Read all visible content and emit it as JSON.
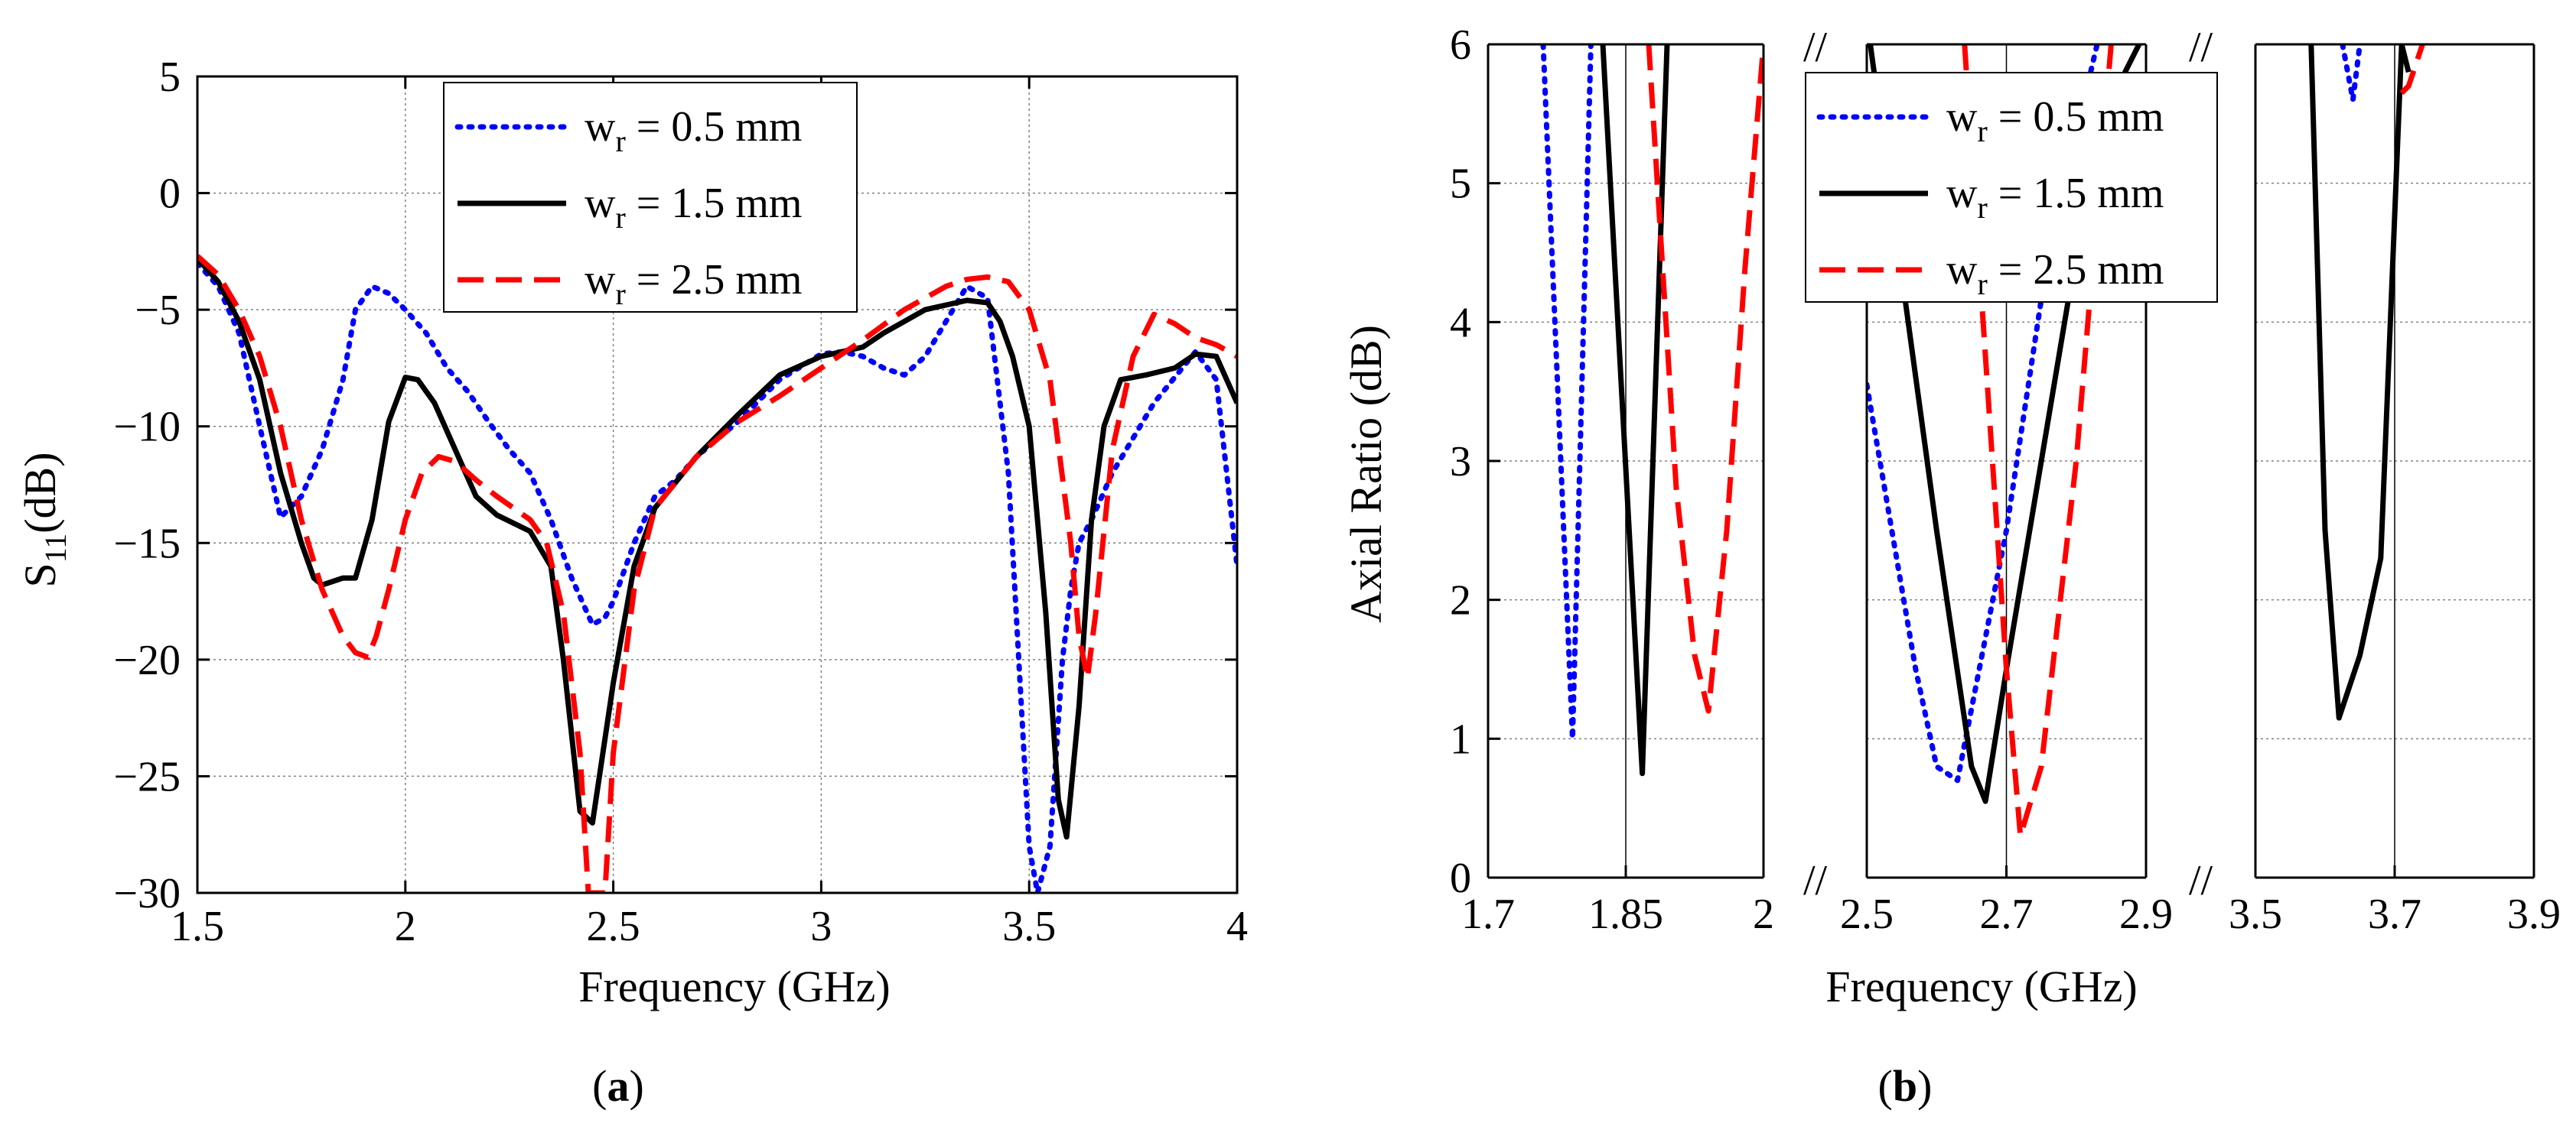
{
  "colors": {
    "wr_0_5": "#0000ff",
    "wr_1_5": "#000000",
    "wr_2_5": "#ff0000",
    "grid": "#808080",
    "axis": "#000000"
  },
  "chart_data": [
    {
      "id": "a",
      "type": "line",
      "panel_label_open": "(",
      "panel_label_letter": "a",
      "panel_label_close": ")",
      "xlabel": "Frequency (GHz)",
      "ylabel_main": "S",
      "ylabel_sub": "11",
      "ylabel_tail": "(dB)",
      "xlim": [
        1.5,
        4
      ],
      "ylim": [
        -30,
        5
      ],
      "xticks": [
        1.5,
        2,
        2.5,
        3,
        3.5,
        4
      ],
      "xtick_labels": [
        "1.5",
        "2",
        "2.5",
        "3",
        "3.5",
        "4"
      ],
      "yticks": [
        -30,
        -25,
        -20,
        -15,
        -10,
        -5,
        0,
        5
      ],
      "ytick_labels": [
        "−30",
        "−25",
        "−20",
        "−15",
        "−10",
        "−5",
        "0",
        "5"
      ],
      "grid": true,
      "legend_placement": "top-center",
      "series": [
        {
          "name_main": "w",
          "name_sub": "r",
          "name_tail": " = 0.5 mm",
          "style": "dotted",
          "x": [
            1.5,
            1.55,
            1.6,
            1.65,
            1.7,
            1.75,
            1.8,
            1.85,
            1.88,
            1.92,
            1.96,
            2.0,
            2.05,
            2.1,
            2.15,
            2.2,
            2.25,
            2.3,
            2.35,
            2.4,
            2.45,
            2.48,
            2.5,
            2.55,
            2.6,
            2.65,
            2.7,
            2.8,
            2.9,
            3.0,
            3.05,
            3.1,
            3.15,
            3.2,
            3.25,
            3.3,
            3.35,
            3.4,
            3.45,
            3.5,
            3.52,
            3.55,
            3.58,
            3.6,
            3.62,
            3.65,
            3.7,
            3.8,
            3.9,
            3.95,
            4.0
          ],
          "y": [
            -3,
            -4,
            -6,
            -10,
            -13.9,
            -13,
            -11,
            -8,
            -5,
            -4,
            -4.3,
            -5,
            -6,
            -7.5,
            -8.5,
            -9.8,
            -11,
            -12,
            -14,
            -16.5,
            -18.5,
            -18.2,
            -17.5,
            -15,
            -13,
            -12.3,
            -11.3,
            -9.8,
            -8,
            -6.9,
            -6.8,
            -7,
            -7.5,
            -7.8,
            -7,
            -5.5,
            -4,
            -4.5,
            -12,
            -28,
            -30,
            -28,
            -20,
            -17,
            -15,
            -14,
            -12,
            -9,
            -6.8,
            -8,
            -16
          ]
        },
        {
          "name_main": "w",
          "name_sub": "r",
          "name_tail": " = 1.5 mm",
          "style": "solid",
          "x": [
            1.5,
            1.55,
            1.6,
            1.65,
            1.7,
            1.75,
            1.78,
            1.8,
            1.85,
            1.88,
            1.92,
            1.96,
            2.0,
            2.03,
            2.07,
            2.12,
            2.17,
            2.22,
            2.3,
            2.35,
            2.38,
            2.42,
            2.45,
            2.5,
            2.55,
            2.6,
            2.7,
            2.8,
            2.9,
            3.0,
            3.05,
            3.1,
            3.15,
            3.2,
            3.25,
            3.3,
            3.35,
            3.4,
            3.43,
            3.46,
            3.5,
            3.54,
            3.57,
            3.59,
            3.62,
            3.65,
            3.68,
            3.72,
            3.78,
            3.85,
            3.9,
            3.95,
            4.0
          ],
          "y": [
            -2.8,
            -3.8,
            -5.5,
            -8,
            -12,
            -15,
            -16.5,
            -16.8,
            -16.5,
            -16.5,
            -14,
            -9.8,
            -7.9,
            -8,
            -9,
            -11,
            -13,
            -13.8,
            -14.5,
            -16,
            -20,
            -26.5,
            -27,
            -21,
            -16,
            -13.5,
            -11.3,
            -9.5,
            -7.8,
            -7,
            -6.8,
            -6.6,
            -6,
            -5.5,
            -5,
            -4.8,
            -4.6,
            -4.7,
            -5.5,
            -7,
            -10,
            -18,
            -26,
            -27.6,
            -22,
            -14,
            -10,
            -8,
            -7.8,
            -7.5,
            -6.9,
            -7,
            -9
          ]
        },
        {
          "name_main": "w",
          "name_sub": "r",
          "name_tail": " = 2.5 mm",
          "style": "dashed",
          "x": [
            1.5,
            1.55,
            1.6,
            1.65,
            1.7,
            1.75,
            1.8,
            1.85,
            1.88,
            1.91,
            1.93,
            1.96,
            2.0,
            2.04,
            2.08,
            2.12,
            2.17,
            2.22,
            2.3,
            2.34,
            2.38,
            2.42,
            2.44,
            2.46,
            2.48,
            2.5,
            2.55,
            2.6,
            2.7,
            2.8,
            2.9,
            3.0,
            3.1,
            3.2,
            3.3,
            3.35,
            3.4,
            3.45,
            3.5,
            3.55,
            3.6,
            3.62,
            3.64,
            3.66,
            3.7,
            3.75,
            3.8,
            3.85,
            3.9,
            3.95,
            4.0
          ],
          "y": [
            -2.7,
            -3.5,
            -5,
            -7,
            -10,
            -14,
            -17,
            -19,
            -19.7,
            -19.9,
            -19,
            -17,
            -14,
            -12,
            -11.3,
            -11.5,
            -12.3,
            -13,
            -14,
            -15,
            -18,
            -24,
            -30,
            -30,
            -30,
            -24,
            -17,
            -13.5,
            -11.3,
            -9.8,
            -8.7,
            -7.5,
            -6.3,
            -5,
            -4,
            -3.7,
            -3.6,
            -3.8,
            -5,
            -8,
            -15,
            -19,
            -20.8,
            -18,
            -11,
            -7,
            -5.2,
            -5.6,
            -6.2,
            -6.5,
            -7
          ]
        }
      ]
    },
    {
      "id": "b",
      "type": "line",
      "panel_label_open": "(",
      "panel_label_letter": "b",
      "panel_label_close": ")",
      "xlabel": "Frequency (GHz)",
      "ylabel": "Axial Ratio (dB)",
      "ylim": [
        0,
        6
      ],
      "yticks": [
        0,
        1,
        2,
        3,
        4,
        5,
        6
      ],
      "ytick_labels": [
        "0",
        "1",
        "2",
        "3",
        "4",
        "5",
        "6"
      ],
      "grid": true,
      "broken_x_axis": true,
      "axis_break_mark": "//",
      "legend_placement": "top-center",
      "segments": [
        {
          "xlim": [
            1.7,
            2.0
          ],
          "xticks": [
            1.7,
            1.85,
            2.0
          ],
          "xtick_labels": [
            "1.7",
            "1.85",
            "2"
          ]
        },
        {
          "xlim": [
            2.5,
            2.9
          ],
          "xticks": [
            2.5,
            2.7,
            2.9
          ],
          "xtick_labels": [
            "2.5",
            "2.7",
            "2.9"
          ]
        },
        {
          "xlim": [
            3.5,
            3.9
          ],
          "xticks": [
            3.5,
            3.7,
            3.9
          ],
          "xtick_labels": [
            "3.5",
            "3.7",
            "3.9"
          ]
        }
      ],
      "series": [
        {
          "name_main": "w",
          "name_sub": "r",
          "name_tail": " = 0.5 mm",
          "style": "dotted",
          "x": [
            1.76,
            1.792,
            1.812,
            [],
            2.5,
            2.57,
            2.6,
            2.63,
            2.7,
            2.76,
            2.83,
            [],
            3.625,
            3.64,
            3.65
          ],
          "y": [
            6,
            1.0,
            6,
            [],
            3.55,
            1.5,
            0.8,
            0.7,
            2.5,
            4.5,
            6,
            [],
            6,
            5.6,
            6
          ]
        },
        {
          "name_main": "w",
          "name_sub": "r",
          "name_tail": " = 1.5 mm",
          "style": "solid",
          "x": [
            1.825,
            1.868,
            1.895,
            [],
            2.505,
            2.6,
            2.65,
            2.67,
            2.7,
            2.8,
            2.87,
            2.89,
            [],
            3.58,
            3.6,
            3.62,
            3.65,
            3.68,
            3.71,
            3.72
          ],
          "y": [
            6,
            0.75,
            6,
            [],
            6,
            2.5,
            0.8,
            0.55,
            1.5,
            4.5,
            5.8,
            6,
            [],
            6,
            2.5,
            1.15,
            1.6,
            2.3,
            6,
            5.8
          ]
        },
        {
          "name_main": "w",
          "name_sub": "r",
          "name_tail": " = 2.5 mm",
          "style": "dashed",
          "x": [
            1.875,
            1.905,
            1.925,
            1.94,
            1.96,
            1.98,
            2.0,
            [],
            2.64,
            2.7,
            2.72,
            2.75,
            2.8,
            2.85,
            [],
            3.71,
            3.72,
            3.74
          ],
          "y": [
            6,
            2.8,
            1.6,
            1.2,
            2.5,
            4.4,
            6,
            [],
            6,
            1.5,
            0.3,
            0.8,
            3.0,
            6,
            [],
            5.65,
            5.7,
            6
          ]
        }
      ]
    }
  ]
}
